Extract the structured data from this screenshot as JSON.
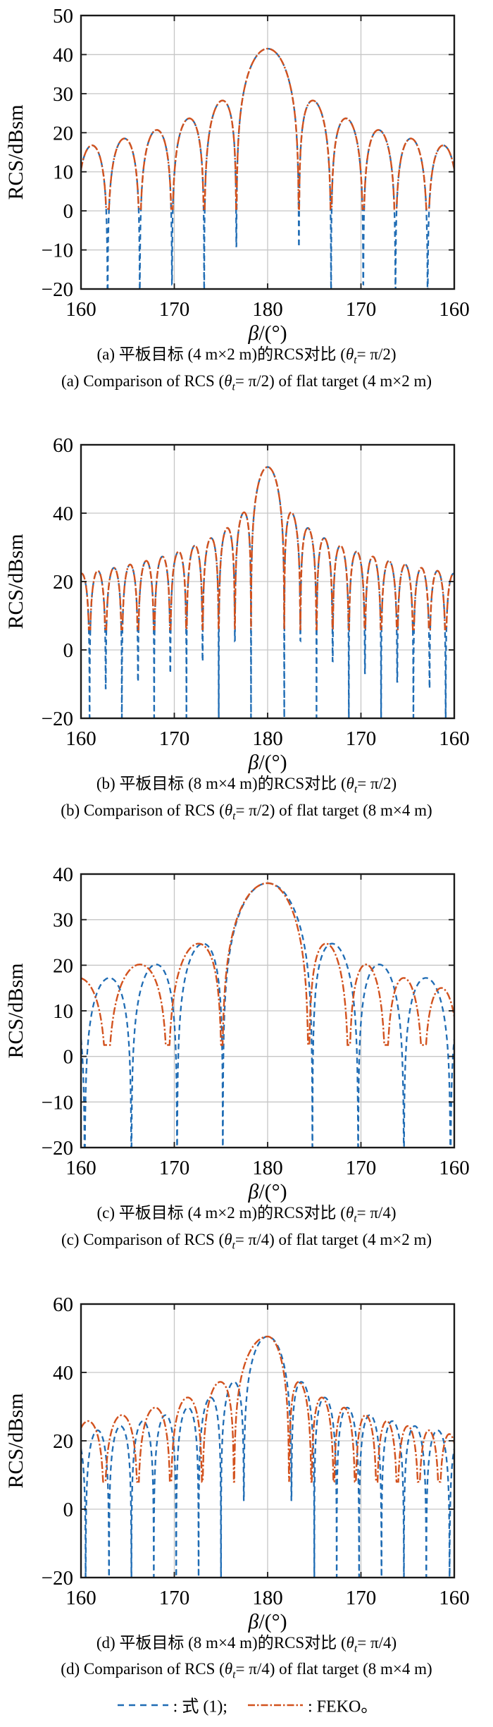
{
  "symbols": {
    "theta": "θ",
    "theta_sub": "t",
    "beta": "β"
  },
  "legend": {
    "eq_label": ": 式 (1);",
    "feko_label": ": FEKO。",
    "eq_color": "#1f6cb4",
    "feko_color": "#d2521e"
  },
  "chart_data": [
    {
      "id": "a",
      "type": "line",
      "ylabel": "RCS/dBsm",
      "xlabel_rest": "/(°)",
      "ylim": [
        -20,
        50
      ],
      "yticks": [
        {
          "v": 50,
          "label": "50"
        },
        {
          "v": 40,
          "label": "40"
        },
        {
          "v": 30,
          "label": "30"
        },
        {
          "v": 20,
          "label": "20"
        },
        {
          "v": 10,
          "label": "10"
        },
        {
          "v": 0,
          "label": "0"
        },
        {
          "v": -10,
          "label": "−10"
        },
        {
          "v": -20,
          "label": "−20"
        }
      ],
      "ygrid": [
        40,
        30,
        20,
        10,
        0,
        -10
      ],
      "xticks": [
        {
          "off": 0,
          "label": "160"
        },
        {
          "off": 10,
          "label": "170"
        },
        {
          "off": 20,
          "label": "180"
        },
        {
          "off": 30,
          "label": "170"
        },
        {
          "off": 40,
          "label": "160"
        }
      ],
      "xgrid": [
        10,
        20,
        30
      ],
      "caption_zh_pre": "(a) 平板目标 (4 m×2 m)的RCS对比 (",
      "caption_zh_post": "= π/2)",
      "caption_en_pre": "(a) Comparison of RCS (",
      "caption_en_post": "= π/2) of flat target (4 m×2 m)",
      "series": [
        {
          "name": "式 (1)",
          "color": "#1f6cb4",
          "line_style": "dashed",
          "center_deg": 180,
          "main_peak_db": 41.5,
          "null_offsets_left_deg": [
            3.35,
            6.8,
            10.25,
            13.7,
            17.15
          ],
          "null_offsets_right_deg": [
            3.35,
            6.8,
            10.25,
            13.7,
            17.15
          ],
          "null_floor_db": null,
          "sidelobe_peaks_db": [
            28.2,
            23.6,
            20.7,
            18.5,
            16.7
          ]
        },
        {
          "name": "FEKO",
          "color": "#d2521e",
          "line_style": "dashdot",
          "center_deg": 180,
          "main_peak_db": 41.5,
          "null_offsets_left_deg": [
            3.35,
            6.8,
            10.25,
            13.7,
            17.15
          ],
          "null_offsets_right_deg": [
            3.35,
            6.8,
            10.25,
            13.7,
            17.15
          ],
          "null_floor_db": 0.5,
          "sidelobe_peaks_db": [
            28.2,
            23.6,
            20.7,
            18.5,
            16.7
          ]
        }
      ]
    },
    {
      "id": "b",
      "type": "line",
      "ylabel": "RCS/dBsm",
      "xlabel_rest": "/(°)",
      "ylim": [
        -20,
        60
      ],
      "yticks": [
        {
          "v": 60,
          "label": "60"
        },
        {
          "v": 40,
          "label": "40"
        },
        {
          "v": 20,
          "label": "20"
        },
        {
          "v": 0,
          "label": "0"
        },
        {
          "v": -20,
          "label": "−20"
        }
      ],
      "ygrid": [
        40,
        20,
        0
      ],
      "xticks": [
        {
          "off": 0,
          "label": "160"
        },
        {
          "off": 10,
          "label": "170"
        },
        {
          "off": 20,
          "label": "180"
        },
        {
          "off": 30,
          "label": "170"
        },
        {
          "off": 40,
          "label": "160"
        }
      ],
      "xgrid": [
        10,
        20,
        30
      ],
      "caption_zh_pre": "(b) 平板目标 (8 m×4 m)的RCS对比 (",
      "caption_zh_post": "= π/2)",
      "caption_en_pre": "(b) Comparison of RCS (",
      "caption_en_post": "= π/2) of flat target (8 m×4 m)",
      "series": [
        {
          "name": "式 (1)",
          "color": "#1f6cb4",
          "line_style": "dashed",
          "center_deg": 180,
          "main_peak_db": 53.5,
          "null_offsets_left_deg": [
            1.78,
            3.51,
            5.24,
            6.97,
            8.7,
            10.43,
            12.16,
            13.89,
            15.62,
            17.35,
            19.08
          ],
          "null_offsets_right_deg": [
            1.78,
            3.51,
            5.24,
            6.97,
            8.7,
            10.43,
            12.16,
            13.89,
            15.62,
            17.35,
            19.08
          ],
          "null_floor_db": null,
          "sidelobe_peaks_db": [
            40.2,
            35.7,
            32.7,
            30.5,
            28.8,
            27.4,
            26.2,
            25.2,
            24.3,
            23.5,
            22.7
          ]
        },
        {
          "name": "FEKO",
          "color": "#d2521e",
          "line_style": "dashdot",
          "center_deg": 180,
          "main_peak_db": 53.5,
          "null_offsets_left_deg": [
            1.78,
            3.51,
            5.24,
            6.97,
            8.7,
            10.43,
            12.16,
            13.89,
            15.62,
            17.35,
            19.08
          ],
          "null_offsets_right_deg": [
            1.78,
            3.51,
            5.24,
            6.97,
            8.7,
            10.43,
            12.16,
            13.89,
            15.62,
            17.35,
            19.08
          ],
          "null_floor_db": 6,
          "sidelobe_peaks_db": [
            40.2,
            35.7,
            32.7,
            30.5,
            28.8,
            27.4,
            26.2,
            25.2,
            24.3,
            23.5,
            22.7
          ]
        }
      ]
    },
    {
      "id": "c",
      "type": "line",
      "ylabel": "RCS/dBsm",
      "xlabel_rest": "/(°)",
      "ylim": [
        -20,
        40
      ],
      "yticks": [
        {
          "v": 40,
          "label": "40"
        },
        {
          "v": 30,
          "label": "30"
        },
        {
          "v": 20,
          "label": "20"
        },
        {
          "v": 10,
          "label": "10"
        },
        {
          "v": 0,
          "label": "0"
        },
        {
          "v": -10,
          "label": "−10"
        },
        {
          "v": -20,
          "label": "−20"
        }
      ],
      "ygrid": [
        30,
        20,
        10,
        0,
        -10
      ],
      "xticks": [
        {
          "off": 0,
          "label": "160"
        },
        {
          "off": 10,
          "label": "170"
        },
        {
          "off": 20,
          "label": "180"
        },
        {
          "off": 30,
          "label": "170"
        },
        {
          "off": 40,
          "label": "160"
        }
      ],
      "xgrid": [
        10,
        20,
        30
      ],
      "caption_zh_pre": "(c) 平板目标 (4 m×2 m)的RCS对比 (",
      "caption_zh_post": "= π/4)",
      "caption_en_pre": "(c) Comparison of RCS (",
      "caption_en_post": "= π/4) of flat target (4 m×2 m)",
      "series": [
        {
          "name": "式 (1)",
          "color": "#1f6cb4",
          "line_style": "dashed",
          "center_deg": 180,
          "main_peak_db": 38,
          "null_offsets_left_deg": [
            4.8,
            9.7,
            14.6,
            19.6
          ],
          "null_offsets_right_deg": [
            4.8,
            9.7,
            14.6,
            19.6
          ],
          "null_floor_db": null,
          "sidelobe_peaks_db": [
            25.2,
            20.6,
            17.7
          ]
        },
        {
          "name": "FEKO",
          "color": "#d2521e",
          "line_style": "dashdot",
          "center_deg": 180,
          "main_peak_db": 38,
          "null_offsets_left_deg": [
            4.9,
            10.7,
            17.2
          ],
          "null_offsets_right_deg": [
            4.4,
            8.7,
            12.7,
            16.7
          ],
          "null_floor_db": 2.5,
          "sidelobe_peaks_db": [
            24.8,
            19.8,
            17.1
          ]
        }
      ]
    },
    {
      "id": "d",
      "type": "line",
      "ylabel": "RCS/dBsm",
      "xlabel_rest": "/(°)",
      "ylim": [
        -20,
        60
      ],
      "yticks": [
        {
          "v": 60,
          "label": "60"
        },
        {
          "v": 40,
          "label": "40"
        },
        {
          "v": 20,
          "label": "20"
        },
        {
          "v": 0,
          "label": "0"
        },
        {
          "v": -20,
          "label": "−20"
        }
      ],
      "ygrid": [
        40,
        20,
        0
      ],
      "xticks": [
        {
          "off": 0,
          "label": "160"
        },
        {
          "off": 10,
          "label": "170"
        },
        {
          "off": 20,
          "label": "180"
        },
        {
          "off": 30,
          "label": "170"
        },
        {
          "off": 40,
          "label": "160"
        }
      ],
      "xgrid": [
        10,
        20,
        30
      ],
      "caption_zh_pre": "(d) 平板目标 (8 m×4 m)的RCS对比 (",
      "caption_zh_post": "= π/4)",
      "caption_en_pre": "(d) Comparison of RCS (",
      "caption_en_post": "= π/4) of flat target (8 m×4 m)",
      "series": [
        {
          "name": "式 (1)",
          "color": "#1f6cb4",
          "line_style": "dashed",
          "center_deg": 180,
          "main_peak_db": 50.5,
          "null_offsets_left_deg": [
            2.55,
            5.0,
            7.4,
            9.8,
            12.2,
            14.6,
            17.0,
            19.5
          ],
          "null_offsets_right_deg": [
            2.55,
            5.0,
            7.4,
            9.8,
            12.2,
            14.6,
            17.0,
            19.5
          ],
          "null_floor_db": null,
          "sidelobe_peaks_db": [
            37.2,
            32.6,
            29.7,
            27.4,
            25.6,
            24.1,
            22.8
          ]
        },
        {
          "name": "FEKO",
          "color": "#d2521e",
          "line_style": "dashdot",
          "center_deg": 180,
          "main_peak_db": 50.5,
          "null_offsets_left_deg": [
            3.6,
            7.0,
            10.4,
            13.9,
            17.5
          ],
          "null_offsets_right_deg": [
            2.3,
            4.7,
            7.1,
            9.4,
            11.7,
            13.9,
            16.2,
            18.4
          ],
          "null_floor_db": 8,
          "sidelobe_peaks_db": [
            37.0,
            32.4,
            29.5,
            27.2,
            25.4,
            24.0,
            22.6
          ]
        }
      ]
    }
  ]
}
